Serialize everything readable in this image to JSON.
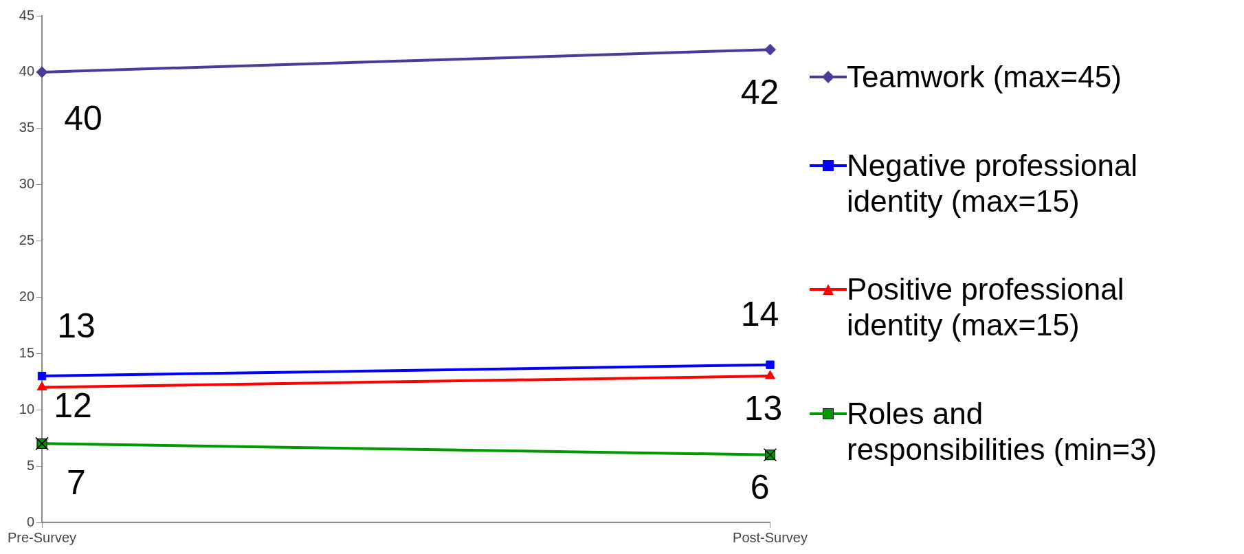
{
  "chart_data": {
    "type": "line",
    "categories": [
      "Pre-Survey",
      "Post-Survey"
    ],
    "series": [
      {
        "name": "Teamwork (max=45)",
        "color": "#4b3a9c",
        "marker": "diamond",
        "values": [
          40,
          42
        ]
      },
      {
        "name": "Negative professional identity (max=15)",
        "color": "#0000ff",
        "marker": "square",
        "values": [
          13,
          14
        ]
      },
      {
        "name": "Positive professional identity (max=15)",
        "color": "#ff0000",
        "marker": "triangle",
        "values": [
          12,
          13
        ]
      },
      {
        "name": "Roles and responsibilities (min=3)",
        "color": "#009900",
        "marker": "square",
        "values": [
          7,
          6
        ]
      }
    ],
    "ylim": [
      0,
      45
    ],
    "yticks": [
      0,
      5,
      10,
      15,
      20,
      25,
      30,
      35,
      40,
      45
    ],
    "grid": false,
    "legend": "right",
    "data_labels": true,
    "line_style": "solid"
  }
}
